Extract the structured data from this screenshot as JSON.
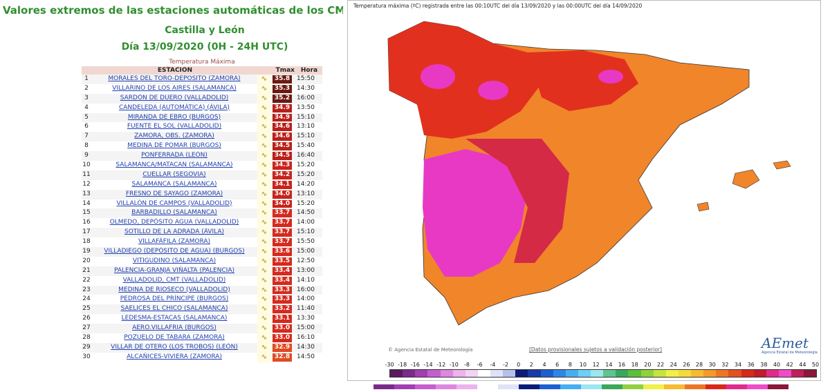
{
  "left": {
    "title": "Valores extremos de las estaciones automáticas de los CMT d",
    "region": "Castilla y León",
    "date": "Día 13/09/2020 (0H - 24H UTC)",
    "caption": "Temperatura Máxima",
    "headers": {
      "station": "ESTACION",
      "tmax": "Tmax",
      "hora": "Hora"
    },
    "graph_icon": "chart-icon",
    "rows": [
      {
        "n": "1",
        "station": "MORALES DEL TORO-DEPOSITO (ZAMORA)",
        "tmax": "35.8",
        "hora": "15:50",
        "color": "#6b1a12"
      },
      {
        "n": "2",
        "station": "VILLARINO DE LOS AIRES (SALAMANCA)",
        "tmax": "35.3",
        "hora": "14:30",
        "color": "#6b1a12"
      },
      {
        "n": "3",
        "station": "SARDÓN DE DUERO (VALLADOLID)",
        "tmax": "35.2",
        "hora": "16:00",
        "color": "#6b1a12"
      },
      {
        "n": "4",
        "station": "CANDELEDA (AUTOMÁTICA) (ÁVILA)",
        "tmax": "34.9",
        "hora": "13:50",
        "color": "#b8201a"
      },
      {
        "n": "5",
        "station": "MIRANDA DE EBRO (BURGOS)",
        "tmax": "34.9",
        "hora": "15:10",
        "color": "#b8201a"
      },
      {
        "n": "6",
        "station": "FUENTE EL SOL (VALLADOLID)",
        "tmax": "34.6",
        "hora": "13:10",
        "color": "#b8201a"
      },
      {
        "n": "7",
        "station": "ZAMORA, OBS. (ZAMORA)",
        "tmax": "34.6",
        "hora": "15:10",
        "color": "#b8201a"
      },
      {
        "n": "8",
        "station": "MEDINA DE POMAR (BURGOS)",
        "tmax": "34.5",
        "hora": "15:40",
        "color": "#b8201a"
      },
      {
        "n": "9",
        "station": "PONFERRADA (LEÓN)",
        "tmax": "34.5",
        "hora": "16:40",
        "color": "#b8201a"
      },
      {
        "n": "10",
        "station": "SALAMANCA/MATACAN (SALAMANCA)",
        "tmax": "34.3",
        "hora": "15:20",
        "color": "#c8241c"
      },
      {
        "n": "11",
        "station": "CUELLAR (SEGOVIA)",
        "tmax": "34.2",
        "hora": "15:20",
        "color": "#c8241c"
      },
      {
        "n": "12",
        "station": "SALAMANCA (SALAMANCA)",
        "tmax": "34.1",
        "hora": "14:20",
        "color": "#c8241c"
      },
      {
        "n": "13",
        "station": "FRESNO DE SAYAGO (ZAMORA)",
        "tmax": "34.0",
        "hora": "13:10",
        "color": "#c8241c"
      },
      {
        "n": "14",
        "station": "VILLALÓN DE CAMPOS (VALLADOLID)",
        "tmax": "34.0",
        "hora": "15:20",
        "color": "#c8241c"
      },
      {
        "n": "15",
        "station": "BARBADILLO (SALAMANCA)",
        "tmax": "33.7",
        "hora": "14:50",
        "color": "#d52a1e"
      },
      {
        "n": "16",
        "station": "OLMEDO, DEPÓSITO AGUA (VALLADOLID)",
        "tmax": "33.7",
        "hora": "14:00",
        "color": "#d52a1e"
      },
      {
        "n": "17",
        "station": "SOTILLO DE LA ADRADA (ÁVILA)",
        "tmax": "33.7",
        "hora": "15:10",
        "color": "#d52a1e"
      },
      {
        "n": "18",
        "station": "VILLAFÁFILA (ZAMORA)",
        "tmax": "33.7",
        "hora": "15:50",
        "color": "#d52a1e"
      },
      {
        "n": "19",
        "station": "VILLADIEGO (DEPÓSITO DE AGUA) (BURGOS)",
        "tmax": "33.6",
        "hora": "15:00",
        "color": "#d52a1e"
      },
      {
        "n": "20",
        "station": "VITIGUDINO (SALAMANCA)",
        "tmax": "33.5",
        "hora": "12:50",
        "color": "#d52a1e"
      },
      {
        "n": "21",
        "station": "PALENCIA-GRANJA VIÑALTA (PALENCIA)",
        "tmax": "33.4",
        "hora": "13:00",
        "color": "#d52a1e"
      },
      {
        "n": "22",
        "station": "VALLADOLID, CMT (VALLADOLID)",
        "tmax": "33.4",
        "hora": "14:10",
        "color": "#d52a1e"
      },
      {
        "n": "23",
        "station": "MEDINA DE RIOSECO (VALLADOLID)",
        "tmax": "33.3",
        "hora": "16:00",
        "color": "#d52a1e"
      },
      {
        "n": "24",
        "station": "PEDROSA DEL PRÍNCIPE (BURGOS)",
        "tmax": "33.3",
        "hora": "14:00",
        "color": "#d52a1e"
      },
      {
        "n": "25",
        "station": "SAELICES EL CHICO (SALAMANCA)",
        "tmax": "33.2",
        "hora": "11:40",
        "color": "#d52a1e"
      },
      {
        "n": "26",
        "station": "LEDESMA-ESTACAS (SALAMANCA)",
        "tmax": "33.1",
        "hora": "13:30",
        "color": "#d52a1e"
      },
      {
        "n": "27",
        "station": "AERO.VILLAFRIA (BURGOS)",
        "tmax": "33.0",
        "hora": "15:00",
        "color": "#d52a1e"
      },
      {
        "n": "28",
        "station": "POZUELO DE TABARA (ZAMORA)",
        "tmax": "33.0",
        "hora": "16:10",
        "color": "#d52a1e"
      },
      {
        "n": "29",
        "station": "VILLAR DE OTERO (LOS TROBOS) (LEÓN)",
        "tmax": "32.9",
        "hora": "14:30",
        "color": "#e04a22"
      },
      {
        "n": "30",
        "station": "ALCAÑICES-VIVIERA (ZAMORA)",
        "tmax": "32.8",
        "hora": "14:50",
        "color": "#e04a22"
      }
    ]
  },
  "map": {
    "title": "Temperatura máxima (ºC) registrada entre las 00:10UTC del día 13/09/2020 y las 00:00UTC del día 14/09/2020",
    "copyright": "© Agencia Estatal de Meteorología",
    "disclaimer": "[Datos provisionales sujetos a validación posterior]",
    "logo": "AEmet",
    "logo_sub": "Agencia Estatal de Meteorología",
    "scale_labels": [
      "-30",
      "-18",
      "-16",
      "-14",
      "-12",
      "-10",
      "-8",
      "-6",
      "-4",
      "-2",
      "0",
      "2",
      "4",
      "6",
      "8",
      "10",
      "12",
      "14",
      "16",
      "18",
      "20",
      "22",
      "24",
      "26",
      "28",
      "30",
      "32",
      "34",
      "36",
      "38",
      "40",
      "42",
      "44",
      "50"
    ],
    "scale_colors": [
      "#5a1a5e",
      "#7b2a8c",
      "#a23fb0",
      "#c45fce",
      "#dd88e0",
      "#ecb3ec",
      "#f3d2f3",
      "#ffffff",
      "#dfe3f5",
      "#b7c0ea",
      "#0a1b7a",
      "#173aa6",
      "#1e5fd0",
      "#2e87e8",
      "#47aef0",
      "#6bd0f3",
      "#9be6ef",
      "#5fc48f",
      "#3aa85a",
      "#5bbf3b",
      "#8fd23e",
      "#c5e43f",
      "#f0f046",
      "#f6da3c",
      "#f7bb32",
      "#f29a2a",
      "#ec7624",
      "#e4501f",
      "#d8281a",
      "#c01a2c",
      "#e02c8c",
      "#f04bc8",
      "#c01f5a",
      "#8a1838"
    ],
    "bottom_colors": [
      "#7b2a8c",
      "#a23fb0",
      "#c45fce",
      "#dd88e0",
      "#ecb3ec",
      "#ffffff",
      "#dfe3f5",
      "#0a1b7a",
      "#1e5fd0",
      "#47aef0",
      "#9be6ef",
      "#3aa85a",
      "#8fd23e",
      "#f0f046",
      "#f7bb32",
      "#ec7624",
      "#d8281a",
      "#e02c8c",
      "#f04bc8",
      "#8a1838"
    ]
  }
}
